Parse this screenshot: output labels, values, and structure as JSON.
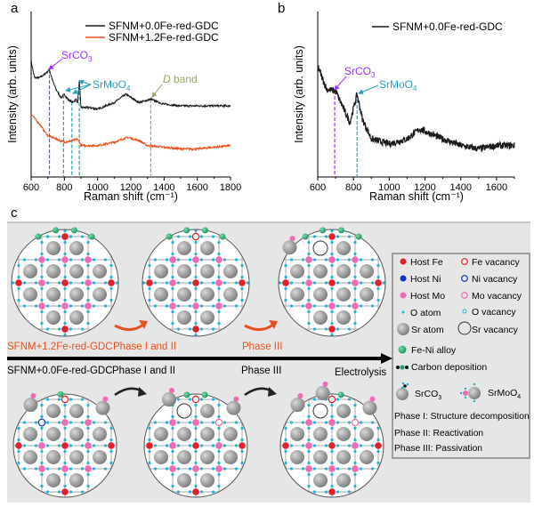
{
  "panel_labels": {
    "a": "a",
    "b": "b",
    "c": "c"
  },
  "colors": {
    "black_series": "#1a1a1a",
    "orange_series": "#e8501e",
    "srco3": "#9b30ff",
    "srmoo4": "#2aa0b8",
    "d_band": "#8fa868",
    "host_fe": "#e0202a",
    "host_ni": "#1030d0",
    "host_mo": "#f06ab4",
    "o_atom": "#1fb3d9",
    "sr_atom": "#8e8e8e",
    "fe_ni_alloy": "#22a06b",
    "panel_c_background": "#e6e6e6"
  },
  "chart_data": [
    {
      "type": "line",
      "panel": "a",
      "xlabel": "Raman shift (cm⁻¹)",
      "ylabel": "Intensity (arb. units)",
      "xlim": [
        600,
        1800
      ],
      "xticks": [
        "600",
        "800",
        "1000",
        "1200",
        "1400",
        "1600",
        "1800"
      ],
      "y_ticks_shown": false,
      "grid": false,
      "legend": "top-right",
      "series": [
        {
          "name": "SFNM+0.0Fe-red-GDC",
          "color": "#1a1a1a",
          "x": [
            600,
            620,
            650,
            680,
            700,
            710,
            730,
            750,
            780,
            800,
            820,
            850,
            870,
            880,
            890,
            900,
            950,
            1000,
            1050,
            1100,
            1170,
            1250,
            1320,
            1400,
            1500,
            1600,
            1700,
            1800
          ],
          "y": [
            70,
            60,
            60,
            62,
            64,
            65,
            58,
            53,
            48,
            50,
            47,
            45,
            47,
            45,
            58,
            42,
            42,
            41,
            43,
            45,
            50,
            45,
            47,
            44,
            43,
            43,
            43,
            43
          ]
        },
        {
          "name": "SFNM+1.2Fe-red-GDC",
          "color": "#e8501e",
          "x": [
            600,
            650,
            700,
            750,
            800,
            850,
            880,
            900,
            1000,
            1100,
            1180,
            1250,
            1300,
            1400,
            1500,
            1600,
            1700,
            1800
          ],
          "y": [
            38,
            32,
            25,
            23,
            21,
            22,
            23,
            19,
            19,
            21,
            24,
            22,
            19,
            18,
            17,
            17,
            18,
            19
          ]
        }
      ],
      "annotations": [
        {
          "text": "SrCO",
          "sub": "3",
          "x": 710,
          "color": "#9b30ff"
        },
        {
          "text": "SrMoO",
          "sub": "4",
          "x": [
            795,
            845,
            890
          ],
          "color": "#2aa0b8"
        },
        {
          "text": "D",
          "suffix": " band",
          "x": 1320,
          "color": "#8fa868"
        }
      ]
    },
    {
      "type": "line",
      "panel": "b",
      "xlabel": "Raman shift (cm⁻¹)",
      "ylabel": "Intensity (arb. units)",
      "xlim": [
        600,
        1700
      ],
      "xticks": [
        "600",
        "800",
        "1000",
        "1200",
        "1400",
        "1600"
      ],
      "y_ticks_shown": false,
      "grid": false,
      "legend": "top-right",
      "series": [
        {
          "name": "SFNM+0.0Fe-red-GDC",
          "color": "#1a1a1a",
          "x": [
            600,
            650,
            700,
            750,
            780,
            820,
            850,
            900,
            1000,
            1100,
            1170,
            1300,
            1400,
            1500,
            1600,
            1700
          ],
          "y": [
            67,
            53,
            52,
            40,
            33,
            50,
            35,
            23,
            20,
            23,
            29,
            23,
            19,
            17,
            19,
            19
          ]
        }
      ],
      "annotations": [
        {
          "text": "SrCO",
          "sub": "3",
          "x": 695,
          "color": "#9b30ff"
        },
        {
          "text": "SrMoO",
          "sub": "4",
          "x": 820,
          "color": "#2aa0b8"
        }
      ]
    }
  ],
  "panel_c": {
    "top_row_label": "SFNM+1.2Fe-red-GDC",
    "top_phase12": "Phase I and II",
    "top_phase3": "Phase III",
    "bottom_row_label": "SFNM+0.0Fe-red-GDC",
    "bottom_phase12": "Phase I and II",
    "bottom_phase3": "Phase III",
    "axis_label": "Electrolysis",
    "legend": {
      "host_fe": "Host Fe",
      "fe_vacancy": "Fe vacancy",
      "host_ni": "Host Ni",
      "ni_vacancy": "Ni vacancy",
      "host_mo": "Host Mo",
      "mo_vacancy": "Mo vacancy",
      "o_atom": "O atom",
      "o_vacancy": "O vacancy",
      "sr_atom": "Sr atom",
      "sr_vacancy": "Sr vacancy",
      "fe_ni_alloy": "Fe-Ni alloy",
      "carbon_deposition": "Carbon deposition",
      "srco3": "SrCO",
      "srco3_sub": "3",
      "srmoo4": "SrMoO",
      "srmoo4_sub": "4",
      "phase1": "Phase I: Structure decomposition",
      "phase2": "Phase II: Reactivation",
      "phase3": "Phase III: Passivation"
    }
  }
}
